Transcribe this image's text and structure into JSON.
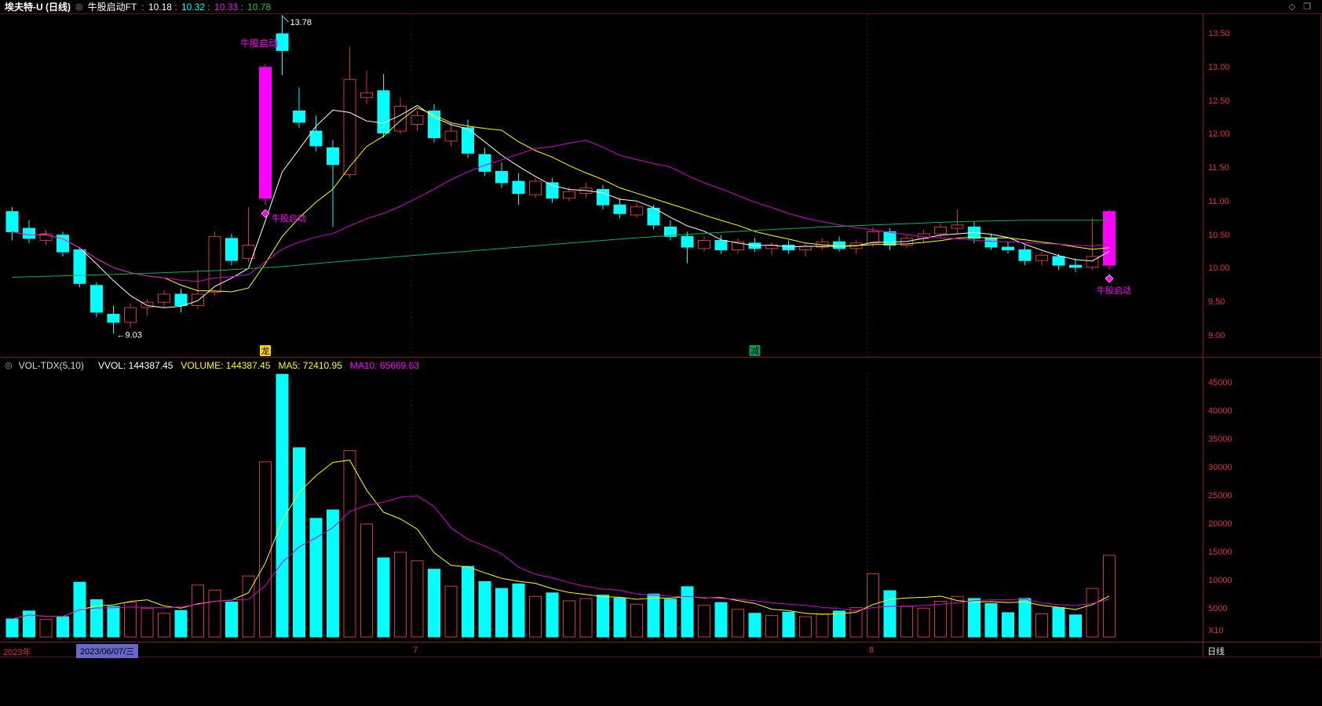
{
  "header": {
    "symbol": "埃夫特-U (日线)",
    "indicator_name": "牛股启动FT",
    "separator": " : ",
    "indicator_values": [
      {
        "text": "10.18",
        "color": "#ffffff"
      },
      {
        "text": "10.32",
        "color": "#00ffff"
      },
      {
        "text": "10.33",
        "color": "#ff00ff"
      },
      {
        "text": "10.78",
        "color": "#00cc44"
      }
    ]
  },
  "icons": {
    "indicator_selector": "◎",
    "diamond": "◇",
    "window": "❐"
  },
  "volume_header": {
    "name": "VOL-TDX(5,10)",
    "values": [
      {
        "text": "VVOL: 144387.45",
        "color": "#ffffff"
      },
      {
        "text": "VOLUME: 144387.45",
        "color": "#ffff00"
      },
      {
        "text": "MA5: 72410.95",
        "color": "#ffff00"
      },
      {
        "text": "MA10: 65669.63",
        "color": "#ff00ff"
      }
    ]
  },
  "timeline": {
    "year": "2023年",
    "selected_date": "2023/06/07/三",
    "month_ticks": [
      {
        "label": "7",
        "index": 24
      },
      {
        "label": "8",
        "index": 51
      }
    ],
    "period_label": "日线"
  },
  "event_markers": [
    {
      "index": 15,
      "label": "龙",
      "bg": "#ffd400",
      "fg": "#000000"
    },
    {
      "index": 44,
      "label": "减",
      "bg": "#00a050",
      "fg": "#000000"
    }
  ],
  "colors": {
    "background": "#000000",
    "up": "#d03a3a",
    "down": "#00ffff",
    "signal_bar": "#ff00ff",
    "ma_white": "#ffffff",
    "ma_yellow": "#ffff00",
    "ma_magenta": "#d200d2",
    "ma_green": "#00b44b",
    "axis_text": "#e03232",
    "border": "#7a1a1a",
    "grid": "#3c1010",
    "selected_date_bg": "#6666cc"
  },
  "chart_data": {
    "type": "candlestick+volume",
    "title": "埃夫特-U 日线 K线图 (牛股启动FT 指标)",
    "price_pane": {
      "ylim": [
        9.0,
        13.5
      ],
      "yticks": [
        "13.50",
        "13.00",
        "12.50",
        "12.00",
        "11.50",
        "11.00",
        "10.50",
        "10.00",
        "9.50",
        "9.00"
      ]
    },
    "candles": [
      [
        10.85,
        10.92,
        10.42,
        10.55,
        3200
      ],
      [
        10.6,
        10.72,
        10.38,
        10.45,
        4600
      ],
      [
        10.42,
        10.58,
        10.35,
        10.52,
        3100
      ],
      [
        10.5,
        10.55,
        10.18,
        10.25,
        3600
      ],
      [
        10.28,
        10.32,
        9.72,
        9.78,
        9700
      ],
      [
        9.75,
        9.8,
        9.28,
        9.35,
        6600
      ],
      [
        9.32,
        9.45,
        9.03,
        9.2,
        5400
      ],
      [
        9.2,
        9.48,
        9.12,
        9.42,
        6100
      ],
      [
        9.42,
        9.55,
        9.3,
        9.5,
        5100
      ],
      [
        9.5,
        9.68,
        9.42,
        9.62,
        4200
      ],
      [
        9.62,
        9.7,
        9.35,
        9.45,
        4700
      ],
      [
        9.45,
        9.98,
        9.4,
        9.62,
        9200
      ],
      [
        9.65,
        10.55,
        9.6,
        10.48,
        8300
      ],
      [
        10.45,
        10.52,
        10.05,
        10.12,
        6200
      ],
      [
        10.15,
        10.92,
        10.1,
        10.35,
        10800
      ],
      [
        11.05,
        13.05,
        10.95,
        13.0,
        31000
      ],
      [
        13.5,
        13.78,
        12.88,
        13.25,
        46500
      ],
      [
        12.35,
        12.7,
        12.1,
        12.18,
        33500
      ],
      [
        12.05,
        12.28,
        11.75,
        11.83,
        21000
      ],
      [
        11.8,
        11.92,
        10.62,
        11.55,
        22500
      ],
      [
        11.4,
        13.3,
        11.35,
        12.82,
        33000
      ],
      [
        12.55,
        12.95,
        12.45,
        12.62,
        20000
      ],
      [
        12.65,
        12.9,
        11.95,
        12.02,
        14000
      ],
      [
        12.05,
        12.55,
        12.0,
        12.42,
        15000
      ],
      [
        12.15,
        12.35,
        12.05,
        12.28,
        13500
      ],
      [
        12.35,
        12.45,
        11.88,
        11.95,
        12000
      ],
      [
        11.9,
        12.18,
        11.82,
        12.05,
        9000
      ],
      [
        12.1,
        12.22,
        11.65,
        11.72,
        12500
      ],
      [
        11.7,
        11.8,
        11.38,
        11.45,
        9800
      ],
      [
        11.45,
        11.58,
        11.2,
        11.28,
        8600
      ],
      [
        11.3,
        11.42,
        10.95,
        11.12,
        9400
      ],
      [
        11.1,
        11.35,
        11.05,
        11.3,
        7200
      ],
      [
        11.28,
        11.35,
        10.98,
        11.05,
        7800
      ],
      [
        11.05,
        11.22,
        11.0,
        11.15,
        6400
      ],
      [
        11.12,
        11.28,
        11.05,
        11.2,
        6800
      ],
      [
        11.18,
        11.25,
        10.88,
        10.95,
        7400
      ],
      [
        10.95,
        11.05,
        10.75,
        10.82,
        6900
      ],
      [
        10.8,
        10.98,
        10.76,
        10.92,
        5800
      ],
      [
        10.9,
        10.95,
        10.58,
        10.65,
        7600
      ],
      [
        10.62,
        10.72,
        10.42,
        10.48,
        6700
      ],
      [
        10.48,
        10.55,
        10.08,
        10.32,
        8900
      ],
      [
        10.3,
        10.48,
        10.25,
        10.42,
        5600
      ],
      [
        10.42,
        10.5,
        10.22,
        10.28,
        6100
      ],
      [
        10.28,
        10.45,
        10.22,
        10.4,
        4900
      ],
      [
        10.38,
        10.46,
        10.25,
        10.3,
        4200
      ],
      [
        10.3,
        10.4,
        10.2,
        10.35,
        3800
      ],
      [
        10.35,
        10.42,
        10.22,
        10.28,
        4400
      ],
      [
        10.28,
        10.38,
        10.18,
        10.33,
        3600
      ],
      [
        10.32,
        10.45,
        10.28,
        10.4,
        4100
      ],
      [
        10.4,
        10.48,
        10.25,
        10.3,
        4600
      ],
      [
        10.3,
        10.42,
        10.22,
        10.38,
        5200
      ],
      [
        10.38,
        10.62,
        10.32,
        10.55,
        11200
      ],
      [
        10.55,
        10.6,
        10.28,
        10.35,
        8200
      ],
      [
        10.35,
        10.5,
        10.3,
        10.45,
        5400
      ],
      [
        10.45,
        10.58,
        10.38,
        10.52,
        5100
      ],
      [
        10.52,
        10.68,
        10.45,
        10.62,
        6300
      ],
      [
        10.6,
        10.88,
        10.52,
        10.65,
        7200
      ],
      [
        10.62,
        10.7,
        10.38,
        10.45,
        6800
      ],
      [
        10.45,
        10.52,
        10.28,
        10.32,
        5900
      ],
      [
        10.32,
        10.4,
        10.22,
        10.28,
        4300
      ],
      [
        10.28,
        10.35,
        10.05,
        10.12,
        6800
      ],
      [
        10.12,
        10.25,
        10.05,
        10.2,
        4100
      ],
      [
        10.18,
        10.22,
        9.98,
        10.05,
        5200
      ],
      [
        10.05,
        10.15,
        9.95,
        10.02,
        3900
      ],
      [
        10.02,
        10.75,
        9.98,
        10.18,
        8600
      ],
      [
        10.05,
        10.88,
        9.98,
        10.85,
        14439
      ]
    ],
    "signal": {
      "label": "牛股启动",
      "bars": [
        {
          "index": 15,
          "label_above": true,
          "label_beside_diamond": true
        },
        {
          "index": 65,
          "label_below_diamond": true
        }
      ]
    },
    "annotations": {
      "high": {
        "index": 16,
        "text": "13.78"
      },
      "low": {
        "index": 6,
        "text": "←9.03"
      }
    },
    "green_line_keypoints": [
      [
        0,
        9.87
      ],
      [
        4,
        9.9
      ],
      [
        8,
        9.93
      ],
      [
        12,
        9.97
      ],
      [
        16,
        10.03
      ],
      [
        20,
        10.12
      ],
      [
        24,
        10.2
      ],
      [
        28,
        10.28
      ],
      [
        32,
        10.36
      ],
      [
        36,
        10.44
      ],
      [
        40,
        10.51
      ],
      [
        44,
        10.57
      ],
      [
        48,
        10.62
      ],
      [
        52,
        10.66
      ],
      [
        56,
        10.7
      ],
      [
        60,
        10.72
      ],
      [
        65,
        10.72
      ]
    ],
    "moving_averages": {
      "white": "MA5",
      "yellow": "MA10",
      "magenta": "MA20",
      "green": "long-term"
    },
    "volume_pane": {
      "axis_min": 5000,
      "axis_max": 45000,
      "yticks": [
        "45000",
        "40000",
        "35000",
        "30000",
        "25000",
        "20000",
        "15000",
        "10000",
        "5000"
      ],
      "unit_label": "X10",
      "ma": {
        "yellow": "MA5",
        "magenta": "MA10"
      }
    }
  }
}
